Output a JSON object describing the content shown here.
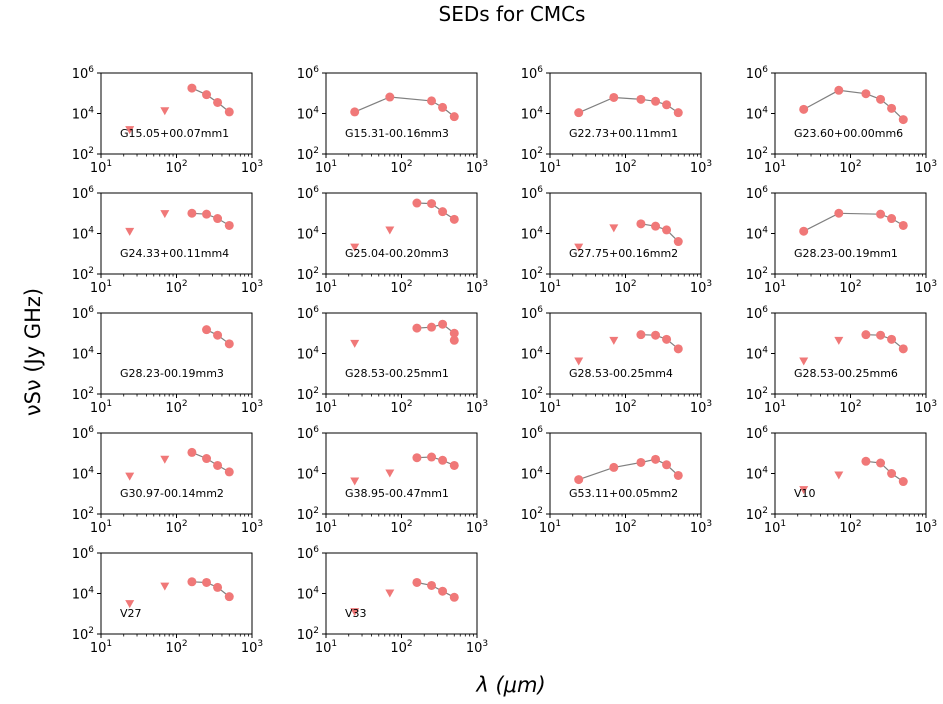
{
  "figure": {
    "title": "SEDs for CMCs",
    "xlabel": "λ (μm)",
    "ylabel": "νSν (Jy GHz)"
  },
  "colors": {
    "marker": "#f07878",
    "line": "#808080",
    "axes": "#000000"
  },
  "chart_data": {
    "type": "scatter",
    "xscale": "log",
    "yscale": "log",
    "xlim": [
      10,
      1000
    ],
    "ylim": [
      100,
      1000000
    ],
    "xticks": [
      "10^1",
      "10^2",
      "10^3"
    ],
    "yticks": [
      "10^2",
      "10^4",
      "10^6"
    ],
    "grid": false,
    "marker_legend": {
      "circle": "detection",
      "triangle-down": "upper limit"
    },
    "panels": [
      {
        "label": "G15.05+00.07mm1",
        "upper_limits": [
          [
            24,
            1500
          ],
          [
            70,
            13000
          ]
        ],
        "detections": [
          [
            160,
            180000
          ],
          [
            250,
            85000
          ],
          [
            350,
            35000
          ],
          [
            500,
            12000
          ]
        ]
      },
      {
        "label": "G15.31-00.16mm3",
        "upper_limits": [],
        "detections": [
          [
            24,
            12000
          ],
          [
            70,
            65000
          ],
          [
            250,
            42000
          ],
          [
            350,
            20000
          ],
          [
            500,
            7000
          ]
        ]
      },
      {
        "label": "G22.73+00.11mm1",
        "upper_limits": [],
        "detections": [
          [
            24,
            11000
          ],
          [
            70,
            62000
          ],
          [
            160,
            50000
          ],
          [
            250,
            40000
          ],
          [
            350,
            27000
          ],
          [
            500,
            11000
          ]
        ]
      },
      {
        "label": "G23.60+00.00mm6",
        "upper_limits": [],
        "detections": [
          [
            24,
            16000
          ],
          [
            70,
            140000
          ],
          [
            160,
            95000
          ],
          [
            250,
            50000
          ],
          [
            350,
            18000
          ],
          [
            500,
            5000
          ]
        ]
      },
      {
        "label": "G24.33+00.11mm4",
        "upper_limits": [
          [
            24,
            12000
          ],
          [
            70,
            90000
          ]
        ],
        "detections": [
          [
            160,
            100000
          ],
          [
            250,
            90000
          ],
          [
            350,
            55000
          ],
          [
            500,
            25000
          ]
        ]
      },
      {
        "label": "G25.04-00.20mm3",
        "upper_limits": [
          [
            24,
            2000
          ],
          [
            70,
            14000
          ]
        ],
        "detections": [
          [
            160,
            320000
          ],
          [
            250,
            300000
          ],
          [
            350,
            120000
          ],
          [
            500,
            50000
          ]
        ]
      },
      {
        "label": "G27.75+00.16mm2",
        "upper_limits": [
          [
            24,
            2000
          ],
          [
            70,
            18000
          ]
        ],
        "detections": [
          [
            160,
            30000
          ],
          [
            250,
            23000
          ],
          [
            350,
            15000
          ],
          [
            500,
            4000
          ]
        ]
      },
      {
        "label": "G28.23-00.19mm1",
        "upper_limits": [],
        "detections": [
          [
            24,
            13000
          ],
          [
            70,
            100000
          ],
          [
            250,
            90000
          ],
          [
            350,
            55000
          ],
          [
            500,
            25000
          ]
        ]
      },
      {
        "label": "G28.23-00.19mm3",
        "upper_limits": [],
        "detections": [
          [
            250,
            150000
          ],
          [
            350,
            80000
          ],
          [
            500,
            30000
          ]
        ]
      },
      {
        "label": "G28.53-00.25mm1",
        "upper_limits": [
          [
            24,
            30000
          ]
        ],
        "detections": [
          [
            160,
            180000
          ],
          [
            250,
            200000
          ],
          [
            350,
            280000
          ],
          [
            500,
            100000
          ],
          [
            500,
            45000
          ]
        ]
      },
      {
        "label": "G28.53-00.25mm4",
        "upper_limits": [
          [
            24,
            4000
          ],
          [
            70,
            42000
          ]
        ],
        "detections": [
          [
            160,
            85000
          ],
          [
            250,
            80000
          ],
          [
            350,
            50000
          ],
          [
            500,
            17000
          ]
        ]
      },
      {
        "label": "G28.53-00.25mm6",
        "upper_limits": [
          [
            24,
            4000
          ],
          [
            70,
            42000
          ]
        ],
        "detections": [
          [
            160,
            85000
          ],
          [
            250,
            80000
          ],
          [
            350,
            50000
          ],
          [
            500,
            17000
          ]
        ]
      },
      {
        "label": "G30.97-00.14mm2",
        "upper_limits": [
          [
            24,
            7000
          ],
          [
            70,
            48000
          ]
        ],
        "detections": [
          [
            160,
            110000
          ],
          [
            250,
            55000
          ],
          [
            350,
            25000
          ],
          [
            500,
            12000
          ]
        ]
      },
      {
        "label": "G38.95-00.47mm1",
        "upper_limits": [
          [
            24,
            4000
          ],
          [
            70,
            10000
          ]
        ],
        "detections": [
          [
            160,
            60000
          ],
          [
            250,
            65000
          ],
          [
            350,
            45000
          ],
          [
            500,
            25000
          ]
        ]
      },
      {
        "label": "G53.11+00.05mm2",
        "upper_limits": [],
        "detections": [
          [
            24,
            5000
          ],
          [
            70,
            20000
          ],
          [
            160,
            35000
          ],
          [
            250,
            50000
          ],
          [
            350,
            27000
          ],
          [
            500,
            8000
          ]
        ]
      },
      {
        "label": "V10",
        "upper_limits": [
          [
            24,
            1500
          ],
          [
            70,
            8000
          ]
        ],
        "detections": [
          [
            160,
            40000
          ],
          [
            250,
            33000
          ],
          [
            350,
            10000
          ],
          [
            500,
            4000
          ]
        ]
      },
      {
        "label": "V27",
        "upper_limits": [
          [
            24,
            3000
          ],
          [
            70,
            22000
          ]
        ],
        "detections": [
          [
            160,
            38000
          ],
          [
            250,
            35000
          ],
          [
            350,
            20000
          ],
          [
            500,
            7000
          ]
        ]
      },
      {
        "label": "V33",
        "upper_limits": [
          [
            24,
            1200
          ],
          [
            70,
            10000
          ]
        ],
        "detections": [
          [
            160,
            35000
          ],
          [
            250,
            25000
          ],
          [
            350,
            13000
          ],
          [
            500,
            6500
          ]
        ]
      }
    ]
  }
}
